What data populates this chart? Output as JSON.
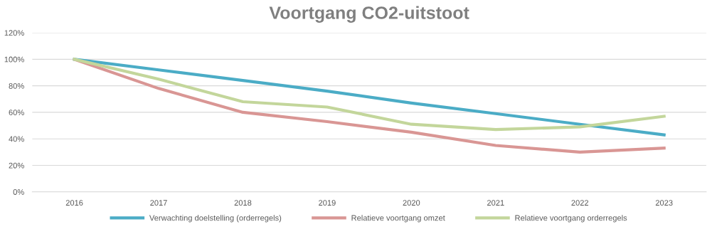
{
  "chart_data": {
    "type": "line",
    "title": "Voortgang CO2-uitstoot",
    "categories": [
      "2016",
      "2017",
      "2018",
      "2019",
      "2020",
      "2021",
      "2022",
      "2023"
    ],
    "series": [
      {
        "name": "Verwachting doelstelling (orderregels)",
        "color": "#4bacc6",
        "values": [
          100,
          92,
          84,
          76,
          67,
          59,
          51,
          43
        ]
      },
      {
        "name": "Relatieve voortgang omzet",
        "color": "#d99694",
        "values": [
          100,
          78,
          60,
          53,
          45,
          35,
          30,
          33
        ]
      },
      {
        "name": "Relatieve voortgang orderregels",
        "color": "#c3d69b",
        "values": [
          100,
          85,
          68,
          64,
          51,
          47,
          49,
          57
        ]
      }
    ],
    "ylim": [
      0,
      120
    ],
    "yticks": [
      {
        "value": 0,
        "label": "0%"
      },
      {
        "value": 20,
        "label": "20%"
      },
      {
        "value": 40,
        "label": "40%"
      },
      {
        "value": 60,
        "label": "60%"
      },
      {
        "value": 80,
        "label": "80%"
      },
      {
        "value": 100,
        "label": "100%"
      },
      {
        "value": 120,
        "label": "120%"
      }
    ],
    "grid": "y",
    "legend": "bottom",
    "marker": "none",
    "line_style": "solid"
  }
}
